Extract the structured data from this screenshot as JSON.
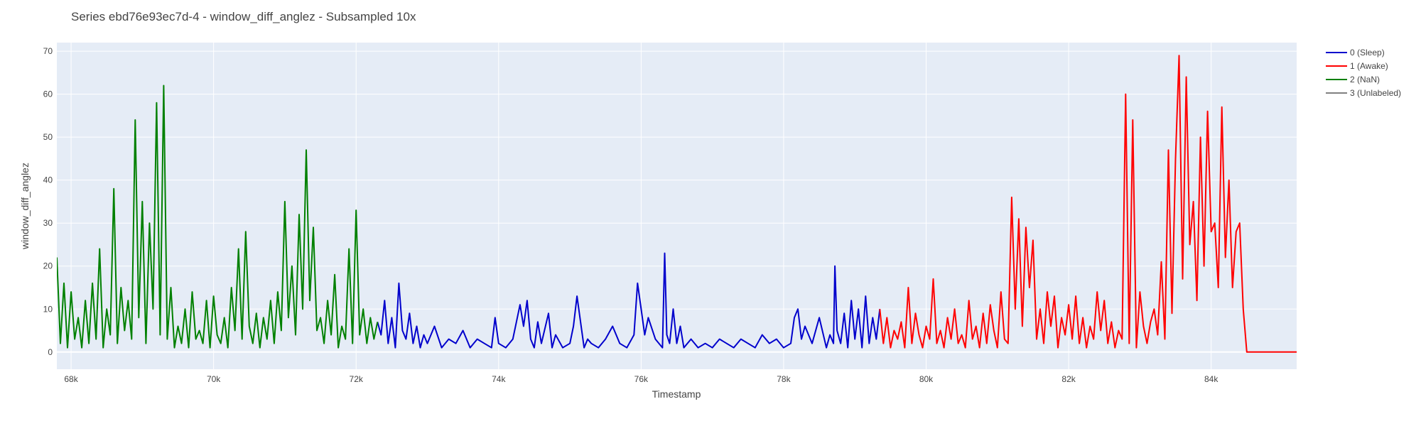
{
  "chart_data": {
    "type": "line",
    "title": "Series ebd76e93ec7d-4 - window_diff_anglez - Subsampled 10x",
    "xlabel": "Timestamp",
    "ylabel": "window_diff_anglez",
    "xlim": [
      67800,
      85200
    ],
    "ylim": [
      -4,
      72
    ],
    "x_ticks": [
      68000,
      70000,
      72000,
      74000,
      76000,
      78000,
      80000,
      82000,
      84000
    ],
    "x_tick_labels": [
      "68k",
      "70k",
      "72k",
      "74k",
      "76k",
      "78k",
      "80k",
      "82k",
      "84k"
    ],
    "y_ticks": [
      0,
      10,
      20,
      30,
      40,
      50,
      60,
      70
    ],
    "y_tick_labels": [
      "0",
      "10",
      "20",
      "30",
      "40",
      "50",
      "60",
      "70"
    ],
    "grid": true,
    "legend_position": "top-right",
    "plot_bgcolor": "#e5ecf6",
    "series": [
      {
        "name": "0 (Sleep)",
        "color": "#0000cc",
        "x": [
          72300,
          72350,
          72400,
          72450,
          72500,
          72550,
          72600,
          72650,
          72700,
          72750,
          72800,
          72850,
          72900,
          72950,
          73000,
          73100,
          73200,
          73300,
          73400,
          73500,
          73600,
          73700,
          73800,
          73900,
          73950,
          74000,
          74100,
          74200,
          74300,
          74350,
          74400,
          74450,
          74500,
          74550,
          74600,
          74700,
          74750,
          74800,
          74900,
          75000,
          75050,
          75100,
          75200,
          75250,
          75300,
          75400,
          75500,
          75600,
          75700,
          75800,
          75900,
          75950,
          76000,
          76050,
          76100,
          76200,
          76300,
          76330,
          76360,
          76400,
          76450,
          76500,
          76550,
          76600,
          76700,
          76800,
          76900,
          77000,
          77100,
          77200,
          77300,
          77400,
          77500,
          77600,
          77700,
          77800,
          77900,
          78000,
          78100,
          78150,
          78200,
          78250,
          78300,
          78400,
          78500,
          78600,
          78650,
          78700,
          78720,
          78750,
          78800,
          78850,
          78900,
          78950,
          79000,
          79050,
          79100,
          79150,
          79200,
          79250,
          79300,
          79350
        ],
        "y": [
          7,
          4,
          12,
          2,
          8,
          1,
          16,
          5,
          3,
          9,
          2,
          6,
          1,
          4,
          2,
          6,
          1,
          3,
          2,
          5,
          1,
          3,
          2,
          1,
          8,
          2,
          1,
          3,
          11,
          6,
          12,
          3,
          1,
          7,
          2,
          9,
          1,
          4,
          1,
          2,
          6,
          13,
          1,
          3,
          2,
          1,
          3,
          6,
          2,
          1,
          4,
          16,
          10,
          4,
          8,
          3,
          1,
          23,
          4,
          2,
          10,
          2,
          6,
          1,
          3,
          1,
          2,
          1,
          3,
          2,
          1,
          3,
          2,
          1,
          4,
          2,
          3,
          1,
          2,
          8,
          10,
          3,
          6,
          2,
          8,
          1,
          4,
          2,
          20,
          5,
          2,
          9,
          1,
          12,
          3,
          10,
          1,
          13,
          2,
          8,
          3,
          10
        ]
      },
      {
        "name": "1 (Awake)",
        "color": "#ff0000",
        "x": [
          79350,
          79400,
          79450,
          79500,
          79550,
          79600,
          79650,
          79700,
          79750,
          79800,
          79850,
          79900,
          79950,
          80000,
          80050,
          80100,
          80150,
          80200,
          80250,
          80300,
          80350,
          80400,
          80450,
          80500,
          80550,
          80600,
          80650,
          80700,
          80750,
          80800,
          80850,
          80900,
          80950,
          81000,
          81050,
          81100,
          81150,
          81200,
          81250,
          81300,
          81350,
          81400,
          81450,
          81500,
          81550,
          81600,
          81650,
          81700,
          81750,
          81800,
          81850,
          81900,
          81950,
          82000,
          82050,
          82100,
          82150,
          82200,
          82250,
          82300,
          82350,
          82400,
          82450,
          82500,
          82550,
          82600,
          82650,
          82700,
          82750,
          82800,
          82850,
          82900,
          82950,
          83000,
          83050,
          83100,
          83150,
          83200,
          83250,
          83300,
          83350,
          83400,
          83450,
          83500,
          83550,
          83600,
          83650,
          83700,
          83750,
          83800,
          83850,
          83900,
          83950,
          84000,
          84050,
          84100,
          84150,
          84200,
          84250,
          84300,
          84350,
          84400,
          84450,
          84500,
          84600,
          84800,
          85000,
          85200
        ],
        "y": [
          10,
          2,
          8,
          1,
          5,
          3,
          7,
          1,
          15,
          2,
          9,
          4,
          1,
          6,
          3,
          17,
          2,
          5,
          1,
          8,
          3,
          10,
          2,
          4,
          1,
          12,
          3,
          6,
          1,
          9,
          2,
          11,
          5,
          1,
          14,
          3,
          2,
          36,
          10,
          31,
          6,
          29,
          15,
          26,
          3,
          10,
          2,
          14,
          6,
          13,
          1,
          8,
          4,
          11,
          3,
          13,
          2,
          8,
          1,
          6,
          3,
          14,
          5,
          12,
          2,
          7,
          1,
          5,
          3,
          60,
          2,
          54,
          1,
          14,
          6,
          2,
          7,
          10,
          4,
          21,
          3,
          47,
          9,
          45,
          69,
          17,
          64,
          25,
          35,
          12,
          50,
          20,
          56,
          28,
          30,
          15,
          57,
          22,
          40,
          15,
          28,
          30,
          10,
          0,
          0,
          0,
          0,
          0
        ]
      },
      {
        "name": "2 (NaN)",
        "color": "#008000",
        "x": [
          67800,
          67850,
          67900,
          67950,
          68000,
          68050,
          68100,
          68150,
          68200,
          68250,
          68300,
          68350,
          68400,
          68450,
          68500,
          68550,
          68600,
          68650,
          68700,
          68750,
          68800,
          68850,
          68900,
          68950,
          69000,
          69050,
          69100,
          69150,
          69200,
          69250,
          69300,
          69350,
          69400,
          69450,
          69500,
          69550,
          69600,
          69650,
          69700,
          69750,
          69800,
          69850,
          69900,
          69950,
          70000,
          70050,
          70100,
          70150,
          70200,
          70250,
          70300,
          70350,
          70400,
          70450,
          70500,
          70550,
          70600,
          70650,
          70700,
          70750,
          70800,
          70850,
          70900,
          70950,
          71000,
          71050,
          71100,
          71150,
          71200,
          71250,
          71300,
          71350,
          71400,
          71450,
          71500,
          71550,
          71600,
          71650,
          71700,
          71750,
          71800,
          71850,
          71900,
          71950,
          72000,
          72050,
          72100,
          72150,
          72200,
          72250,
          72300
        ],
        "y": [
          22,
          2,
          16,
          1,
          14,
          3,
          8,
          1,
          12,
          2,
          16,
          3,
          24,
          1,
          10,
          4,
          38,
          2,
          15,
          5,
          12,
          3,
          54,
          8,
          35,
          2,
          30,
          10,
          58,
          4,
          62,
          3,
          15,
          1,
          6,
          2,
          10,
          1,
          14,
          3,
          5,
          2,
          12,
          1,
          13,
          4,
          2,
          8,
          1,
          15,
          5,
          24,
          3,
          28,
          6,
          2,
          9,
          1,
          8,
          3,
          12,
          2,
          14,
          5,
          35,
          8,
          20,
          4,
          32,
          10,
          47,
          12,
          29,
          5,
          8,
          2,
          12,
          4,
          18,
          1,
          6,
          3,
          24,
          2,
          33,
          4,
          10,
          2,
          8,
          3,
          7
        ]
      },
      {
        "name": "3 (Unlabeled)",
        "color": "#808080",
        "x": [],
        "y": []
      }
    ]
  }
}
